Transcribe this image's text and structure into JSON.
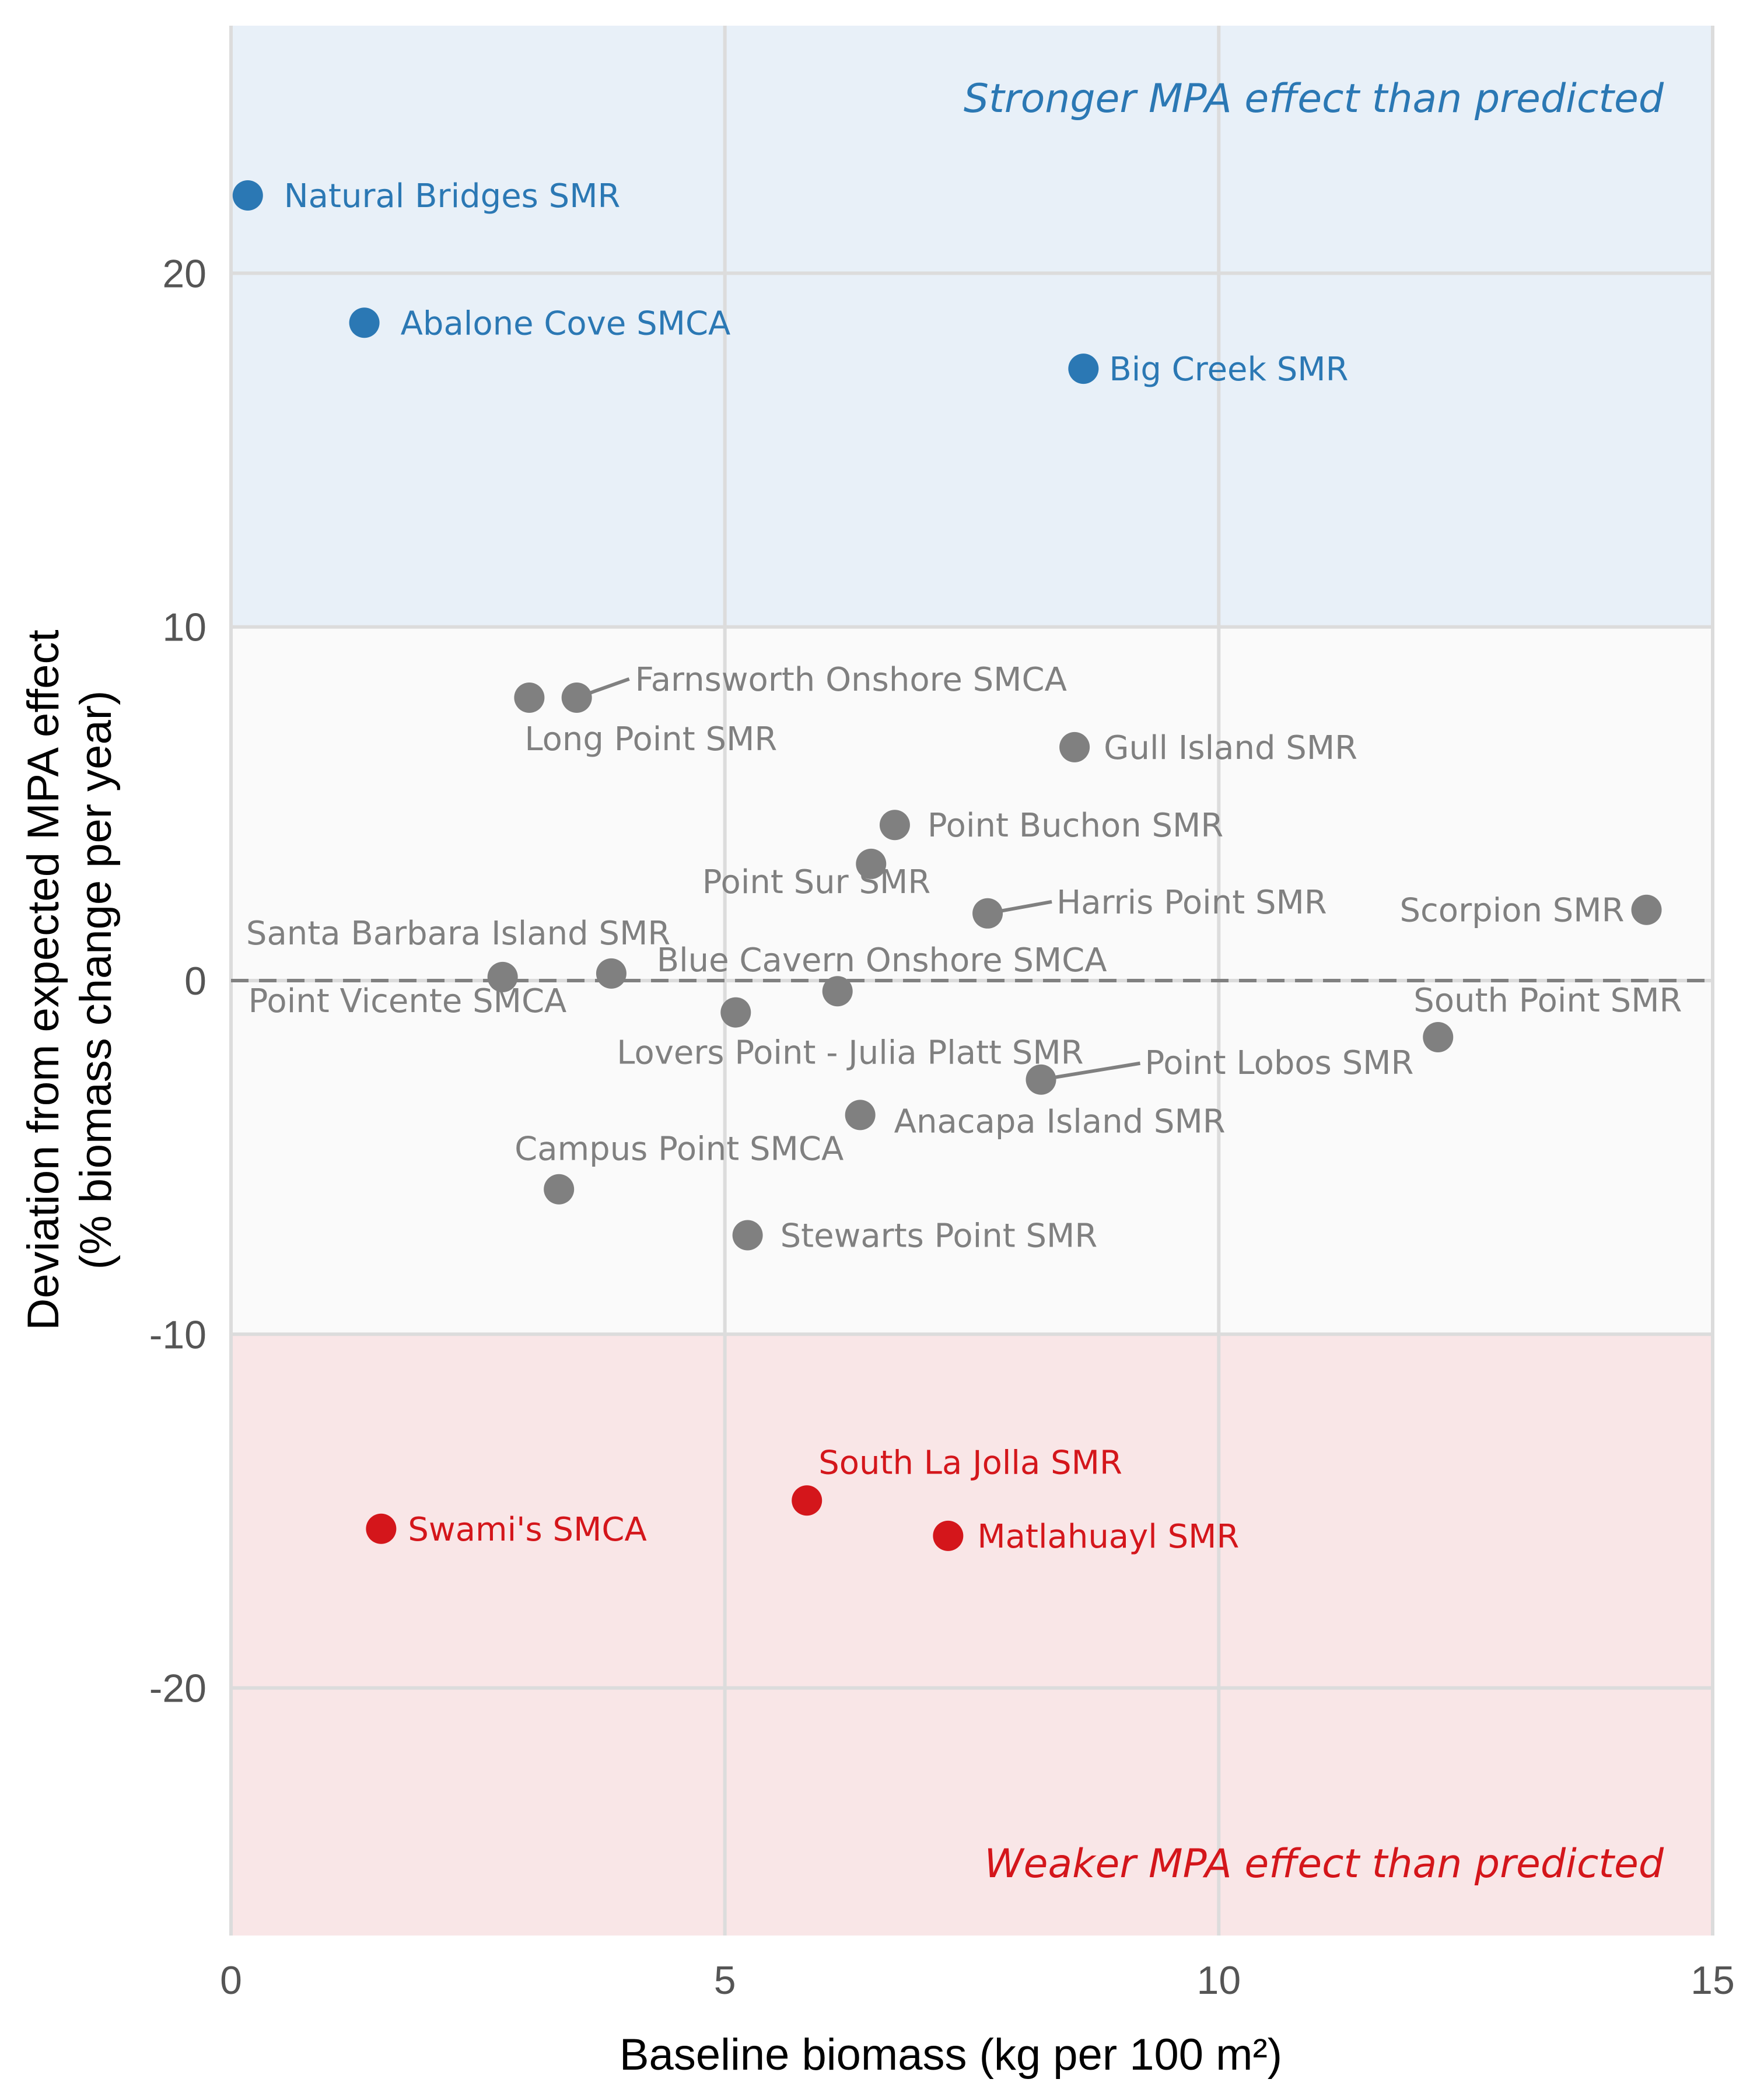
{
  "chart_data": {
    "type": "scatter",
    "xlabel": "Baseline biomass (kg per 100 m²)",
    "ylabel_line1": "Deviation from expected MPA effect",
    "ylabel_line2": "(% biomass change per year)",
    "xlim": [
      0,
      15
    ],
    "ylim": [
      -27,
      27
    ],
    "x_ticks": [
      0,
      5,
      10,
      15
    ],
    "y_ticks": [
      -20,
      -10,
      0,
      10,
      20
    ],
    "y_tick_labels": [
      "-20",
      "-10",
      "0",
      "10",
      "20"
    ],
    "reference_line_y": 0,
    "grid": true,
    "regions": [
      {
        "id": "stronger",
        "y_from": 10,
        "y_to": 27,
        "color": "#e8f0f8",
        "label": "Stronger MPA effect than predicted",
        "label_color": "#2b78b4"
      },
      {
        "id": "neutral",
        "y_from": -10,
        "y_to": 10,
        "color": "#fafafa",
        "label": ""
      },
      {
        "id": "weaker",
        "y_from": -27,
        "y_to": -10,
        "color": "#f9e6e7",
        "label": "Weaker MPA effect than predicted",
        "label_color": "#d4161b"
      }
    ],
    "colors": {
      "stronger": "#2b78b4",
      "neutral": "#808080",
      "weaker": "#d4161b"
    },
    "points": [
      {
        "name": "Natural Bridges SMR",
        "x": 0.17,
        "y": 22.2,
        "group": "stronger"
      },
      {
        "name": "Abalone Cove SMCA",
        "x": 1.35,
        "y": 18.6,
        "group": "stronger"
      },
      {
        "name": "Big Creek SMR",
        "x": 8.63,
        "y": 17.3,
        "group": "stronger"
      },
      {
        "name": "Farnsworth Onshore SMCA",
        "x": 3.5,
        "y": 8.0,
        "group": "neutral"
      },
      {
        "name": "Long Point SMR",
        "x": 3.02,
        "y": 8.0,
        "group": "neutral"
      },
      {
        "name": "Gull Island SMR",
        "x": 8.54,
        "y": 6.6,
        "group": "neutral"
      },
      {
        "name": "Point Buchon SMR",
        "x": 6.72,
        "y": 4.4,
        "group": "neutral"
      },
      {
        "name": "Point Sur SMR",
        "x": 6.48,
        "y": 3.3,
        "group": "neutral"
      },
      {
        "name": "Harris Point SMR",
        "x": 7.66,
        "y": 1.9,
        "group": "neutral"
      },
      {
        "name": "Scorpion SMR",
        "x": 14.33,
        "y": 2.0,
        "group": "neutral"
      },
      {
        "name": "Santa Barbara Island SMR",
        "x": 3.85,
        "y": 0.2,
        "group": "neutral"
      },
      {
        "name": "Point Vicente SMCA",
        "x": 2.75,
        "y": 0.1,
        "group": "neutral"
      },
      {
        "name": "Blue Cavern Onshore SMCA",
        "x": 6.14,
        "y": -0.3,
        "group": "neutral"
      },
      {
        "name": "Lovers Point - Julia Platt SMR",
        "x": 5.11,
        "y": -0.9,
        "group": "neutral"
      },
      {
        "name": "South Point SMR",
        "x": 12.22,
        "y": -1.6,
        "group": "neutral"
      },
      {
        "name": "Point Lobos SMR",
        "x": 8.2,
        "y": -2.8,
        "group": "neutral"
      },
      {
        "name": "Anacapa Island SMR",
        "x": 6.37,
        "y": -3.8,
        "group": "neutral"
      },
      {
        "name": "Campus Point SMCA",
        "x": 3.32,
        "y": -5.9,
        "group": "neutral"
      },
      {
        "name": "Stewarts Point SMR",
        "x": 5.23,
        "y": -7.2,
        "group": "neutral"
      },
      {
        "name": "South La Jolla SMR",
        "x": 5.83,
        "y": -14.7,
        "group": "weaker"
      },
      {
        "name": "Swami's SMCA",
        "x": 1.52,
        "y": -15.5,
        "group": "weaker"
      },
      {
        "name": "Matlahuayl SMR",
        "x": 7.26,
        "y": -15.7,
        "group": "weaker"
      }
    ]
  }
}
